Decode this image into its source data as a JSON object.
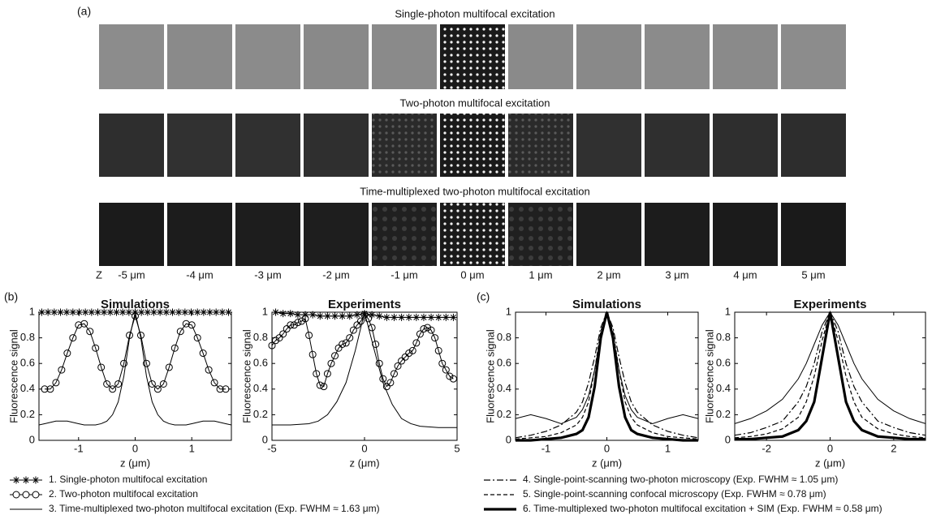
{
  "panel_labels": [
    "(a)",
    "(b)",
    "(c)"
  ],
  "panel_a": {
    "titles": [
      "Single-photon multifocal excitation",
      "Two-photon multifocal excitation",
      "Time-multiplexed two-photon multifocal excitation"
    ],
    "z_label": "Z",
    "z_values": [
      "-5 μm",
      "-4 μm",
      "-3 μm",
      "-2 μm",
      "-1 μm",
      "0 μm",
      "1 μm",
      "2 μm",
      "3 μm",
      "4 μm",
      "5 μm"
    ]
  },
  "chart_data": [
    {
      "type": "line",
      "title": "Simulations",
      "x_label": "z (μm)",
      "y_label": "Fluorescence signal",
      "xlim": [
        -1.7,
        1.7
      ],
      "xticks": [
        -1,
        0,
        1
      ],
      "ylim": [
        0,
        1
      ],
      "yticks": [
        0,
        0.2,
        0.4,
        0.6,
        0.8,
        1
      ],
      "series": [
        {
          "name": "1. Single-photon multifocal excitation",
          "style": "stars",
          "color": "#000",
          "x": [
            -1.65,
            -1.54,
            -1.43,
            -1.32,
            -1.21,
            -1.1,
            -0.99,
            -0.88,
            -0.77,
            -0.66,
            -0.55,
            -0.44,
            -0.33,
            -0.22,
            -0.11,
            0,
            0.11,
            0.22,
            0.33,
            0.44,
            0.55,
            0.66,
            0.77,
            0.88,
            0.99,
            1.1,
            1.21,
            1.32,
            1.43,
            1.54,
            1.65
          ],
          "values": [
            1,
            1,
            1,
            1,
            1,
            1,
            1,
            1,
            1,
            1,
            1,
            1,
            1,
            1,
            1,
            1,
            1,
            1,
            1,
            1,
            1,
            1,
            1,
            1,
            1,
            1,
            1,
            1,
            1,
            1,
            1
          ]
        },
        {
          "name": "2. Two-photon multifocal excitation",
          "style": "circles",
          "color": "#000",
          "x": [
            -1.6,
            -1.5,
            -1.4,
            -1.3,
            -1.2,
            -1.1,
            -1.0,
            -0.9,
            -0.8,
            -0.7,
            -0.6,
            -0.5,
            -0.4,
            -0.3,
            -0.2,
            -0.1,
            0,
            0.1,
            0.2,
            0.3,
            0.4,
            0.5,
            0.6,
            0.7,
            0.8,
            0.9,
            1.0,
            1.1,
            1.2,
            1.3,
            1.4,
            1.5,
            1.6
          ],
          "values": [
            0.4,
            0.4,
            0.45,
            0.55,
            0.68,
            0.8,
            0.9,
            0.91,
            0.85,
            0.72,
            0.57,
            0.44,
            0.4,
            0.44,
            0.6,
            0.82,
            0.97,
            0.82,
            0.6,
            0.44,
            0.4,
            0.44,
            0.57,
            0.72,
            0.85,
            0.91,
            0.9,
            0.8,
            0.68,
            0.55,
            0.45,
            0.4,
            0.4
          ]
        },
        {
          "name": "3. Time-multiplexed two-photon multifocal excitation (Exp. FWHM ≈ 1.63 μm)",
          "style": "solid",
          "color": "#000",
          "x": [
            -1.7,
            -1.6,
            -1.5,
            -1.4,
            -1.3,
            -1.2,
            -1.1,
            -1.0,
            -0.9,
            -0.8,
            -0.7,
            -0.6,
            -0.5,
            -0.4,
            -0.3,
            -0.2,
            -0.1,
            0,
            0.1,
            0.2,
            0.3,
            0.4,
            0.5,
            0.6,
            0.7,
            0.8,
            0.9,
            1.0,
            1.1,
            1.2,
            1.3,
            1.4,
            1.5,
            1.6,
            1.7
          ],
          "values": [
            0.12,
            0.13,
            0.14,
            0.15,
            0.15,
            0.15,
            0.14,
            0.13,
            0.12,
            0.12,
            0.12,
            0.13,
            0.15,
            0.2,
            0.3,
            0.5,
            0.8,
            1,
            0.8,
            0.5,
            0.3,
            0.2,
            0.15,
            0.13,
            0.12,
            0.12,
            0.12,
            0.13,
            0.14,
            0.15,
            0.15,
            0.15,
            0.14,
            0.13,
            0.12
          ]
        }
      ]
    },
    {
      "type": "line",
      "title": "Experiments",
      "x_label": "z (μm)",
      "y_label": "Fluorescence signal",
      "xlim": [
        -5,
        5
      ],
      "xticks": [
        -5,
        0,
        5
      ],
      "ylim": [
        0,
        1
      ],
      "yticks": [
        0,
        0.2,
        0.4,
        0.6,
        0.8,
        1
      ],
      "series": [
        {
          "style": "stars",
          "color": "#000",
          "x": [
            -4.8,
            -4.4,
            -4.0,
            -3.6,
            -3.2,
            -2.8,
            -2.4,
            -2.0,
            -1.6,
            -1.2,
            -0.8,
            -0.4,
            0,
            0.4,
            0.8,
            1.2,
            1.6,
            2.0,
            2.4,
            2.8,
            3.2,
            3.6,
            4.0,
            4.4,
            4.8
          ],
          "values": [
            1,
            0.99,
            0.99,
            0.98,
            0.98,
            0.98,
            0.97,
            0.97,
            0.97,
            0.97,
            0.97,
            0.98,
            0.99,
            0.98,
            0.97,
            0.96,
            0.96,
            0.96,
            0.96,
            0.96,
            0.96,
            0.96,
            0.96,
            0.96,
            0.96
          ]
        },
        {
          "style": "circles",
          "color": "#000",
          "x": [
            -5,
            -4.8,
            -4.6,
            -4.4,
            -4.2,
            -4,
            -3.8,
            -3.6,
            -3.4,
            -3.2,
            -3,
            -2.8,
            -2.6,
            -2.4,
            -2.2,
            -2,
            -1.8,
            -1.6,
            -1.4,
            -1.2,
            -1,
            -0.8,
            -0.6,
            -0.4,
            -0.2,
            0,
            0.2,
            0.4,
            0.6,
            0.8,
            1,
            1.2,
            1.4,
            1.6,
            1.8,
            2,
            2.2,
            2.4,
            2.6,
            2.8,
            3,
            3.2,
            3.4,
            3.6,
            3.8,
            4,
            4.2,
            4.4,
            4.6,
            4.8
          ],
          "values": [
            0.74,
            0.78,
            0.8,
            0.83,
            0.87,
            0.9,
            0.9,
            0.92,
            0.93,
            0.95,
            0.82,
            0.67,
            0.52,
            0.43,
            0.42,
            0.52,
            0.6,
            0.66,
            0.72,
            0.75,
            0.76,
            0.8,
            0.86,
            0.9,
            0.93,
            0.98,
            0.95,
            0.88,
            0.75,
            0.6,
            0.48,
            0.42,
            0.45,
            0.52,
            0.58,
            0.62,
            0.65,
            0.68,
            0.7,
            0.76,
            0.83,
            0.87,
            0.88,
            0.86,
            0.8,
            0.7,
            0.6,
            0.55,
            0.5,
            0.48
          ]
        },
        {
          "style": "solid",
          "color": "#000",
          "x": [
            -5,
            -4,
            -3,
            -2.5,
            -2,
            -1.5,
            -1,
            -0.5,
            0,
            0.5,
            1,
            1.5,
            2,
            2.5,
            3,
            4,
            5
          ],
          "values": [
            0.12,
            0.12,
            0.13,
            0.15,
            0.2,
            0.3,
            0.45,
            0.7,
            1,
            0.72,
            0.45,
            0.28,
            0.17,
            0.13,
            0.11,
            0.1,
            0.1
          ]
        }
      ]
    },
    {
      "type": "line",
      "title": "Simulations",
      "x_label": "z (μm)",
      "y_label": "Fluorescence signal",
      "xlim": [
        -1.5,
        1.5
      ],
      "xticks": [
        -1,
        0,
        1
      ],
      "ylim": [
        0,
        1
      ],
      "yticks": [
        0,
        0.2,
        0.4,
        0.6,
        0.8,
        1
      ],
      "series": [
        {
          "style": "solid",
          "color": "#000",
          "x": [
            -1.5,
            -1.25,
            -1,
            -0.75,
            -0.5,
            -0.4,
            -0.3,
            -0.2,
            -0.1,
            0,
            0.1,
            0.2,
            0.3,
            0.4,
            0.5,
            0.75,
            1,
            1.25,
            1.5
          ],
          "values": [
            0.17,
            0.2,
            0.17,
            0.13,
            0.18,
            0.24,
            0.35,
            0.55,
            0.82,
            1,
            0.82,
            0.55,
            0.35,
            0.24,
            0.18,
            0.13,
            0.17,
            0.2,
            0.17
          ]
        },
        {
          "name": "4. Single-point-scanning two-photon microscopy (Exp. FWHM ≈ 1.05 μm)",
          "style": "dashdot",
          "color": "#000",
          "x": [
            -1.5,
            -1.25,
            -1,
            -0.75,
            -0.5,
            -0.4,
            -0.3,
            -0.2,
            -0.1,
            0,
            0.1,
            0.2,
            0.3,
            0.4,
            0.5,
            0.75,
            1,
            1.25,
            1.5
          ],
          "values": [
            0.02,
            0.04,
            0.07,
            0.12,
            0.22,
            0.3,
            0.45,
            0.65,
            0.88,
            1,
            0.88,
            0.65,
            0.45,
            0.3,
            0.22,
            0.12,
            0.07,
            0.04,
            0.02
          ]
        },
        {
          "name": "5. Single-point-scanning confocal microscopy (Exp. FWHM ≈ 0.78 μm)",
          "style": "dashed",
          "color": "#000",
          "x": [
            -1.5,
            -1.25,
            -1,
            -0.75,
            -0.5,
            -0.4,
            -0.3,
            -0.2,
            -0.1,
            0,
            0.1,
            0.2,
            0.3,
            0.4,
            0.5,
            0.75,
            1,
            1.25,
            1.5
          ],
          "values": [
            0.01,
            0.02,
            0.03,
            0.06,
            0.12,
            0.18,
            0.3,
            0.55,
            0.85,
            1,
            0.85,
            0.55,
            0.3,
            0.18,
            0.12,
            0.06,
            0.03,
            0.02,
            0.01
          ]
        },
        {
          "name": "6. Time-multiplexed two-photon multifocal excitation + SIM (Exp. FWHM ≈ 0.58 μm)",
          "style": "thick",
          "color": "#000",
          "x": [
            -1.5,
            -1.25,
            -1,
            -0.75,
            -0.5,
            -0.4,
            -0.3,
            -0.2,
            -0.1,
            0,
            0.1,
            0.2,
            0.3,
            0.4,
            0.5,
            0.75,
            1,
            1.25,
            1.5
          ],
          "values": [
            0,
            0,
            0.01,
            0.02,
            0.05,
            0.08,
            0.18,
            0.42,
            0.8,
            1,
            0.8,
            0.42,
            0.18,
            0.08,
            0.05,
            0.02,
            0.01,
            0,
            0
          ]
        }
      ]
    },
    {
      "type": "line",
      "title": "Experiments",
      "x_label": "z (μm)",
      "y_label": "Fluorescence signal",
      "xlim": [
        -3,
        3
      ],
      "xticks": [
        -2,
        0,
        2
      ],
      "ylim": [
        0,
        1
      ],
      "yticks": [
        0,
        0.2,
        0.4,
        0.6,
        0.8,
        1
      ],
      "series": [
        {
          "style": "solid",
          "color": "#000",
          "x": [
            -3,
            -2.5,
            -2,
            -1.5,
            -1,
            -0.75,
            -0.5,
            -0.25,
            0,
            0.25,
            0.5,
            0.75,
            1,
            1.5,
            2,
            2.5,
            3
          ],
          "values": [
            0.13,
            0.17,
            0.23,
            0.32,
            0.48,
            0.6,
            0.75,
            0.9,
            1,
            0.9,
            0.75,
            0.6,
            0.48,
            0.32,
            0.23,
            0.17,
            0.13
          ]
        },
        {
          "style": "dashdot",
          "color": "#000",
          "x": [
            -3,
            -2.5,
            -2,
            -1.5,
            -1,
            -0.75,
            -0.5,
            -0.25,
            0,
            0.25,
            0.5,
            0.75,
            1,
            1.5,
            2,
            2.5,
            3
          ],
          "values": [
            0.04,
            0.06,
            0.1,
            0.15,
            0.3,
            0.42,
            0.6,
            0.85,
            1,
            0.85,
            0.6,
            0.42,
            0.3,
            0.15,
            0.1,
            0.06,
            0.04
          ]
        },
        {
          "style": "dashed",
          "color": "#000",
          "x": [
            -3,
            -2.5,
            -2,
            -1.5,
            -1,
            -0.75,
            -0.5,
            -0.25,
            0,
            0.25,
            0.5,
            0.75,
            1,
            1.5,
            2,
            2.5,
            3
          ],
          "values": [
            0.02,
            0.03,
            0.05,
            0.09,
            0.18,
            0.3,
            0.5,
            0.78,
            1,
            0.78,
            0.5,
            0.3,
            0.18,
            0.09,
            0.05,
            0.03,
            0.02
          ]
        },
        {
          "style": "thick",
          "color": "#000",
          "x": [
            -3,
            -2.5,
            -2,
            -1.5,
            -1,
            -0.75,
            -0.5,
            -0.25,
            0,
            0.25,
            0.5,
            0.75,
            1,
            1.5,
            2,
            2.5,
            3
          ],
          "values": [
            0.01,
            0.01,
            0.02,
            0.03,
            0.08,
            0.15,
            0.3,
            0.65,
            1,
            0.65,
            0.3,
            0.15,
            0.08,
            0.03,
            0.02,
            0.01,
            0.01
          ]
        }
      ]
    }
  ]
}
